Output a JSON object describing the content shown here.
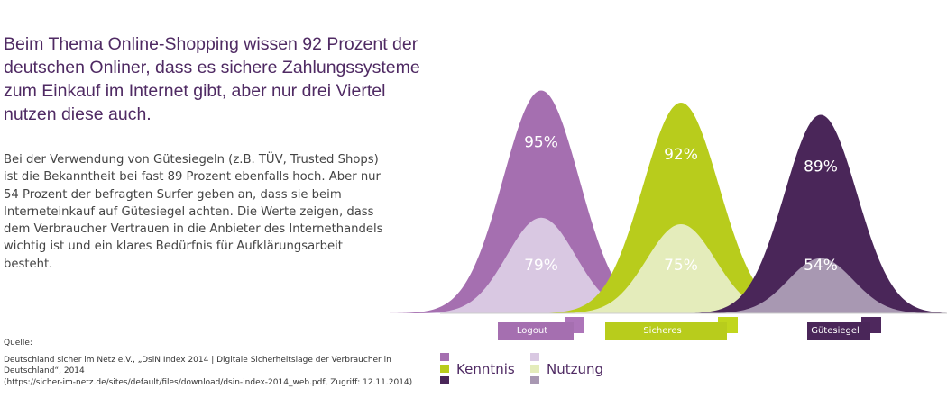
{
  "title": "Beim Thema Online-Shopping wissen 92 Prozent der deutschen Onliner, dass es sichere Zahlungssysteme zum Einkauf im Internet gibt, aber nur drei Viertel nutzen diese auch.",
  "body": "Bei der Verwendung von Gütesiegeln (z.B. TÜV, Trusted Shops) ist die Bekanntheit bei fast 89 Prozent ebenfalls hoch. Aber nur 54 Prozent der befragten Surfer geben an, dass sie beim Interneteinkauf auf Gütesiegel achten. Die Werte zeigen, dass dem Verbraucher Vertrauen in die Anbieter des Internethandels wichtig ist und ein klares Bedürfnis für Aufklärungsarbeit besteht.",
  "source": {
    "label": "Quelle:",
    "text": "Deutschland sicher im Netz e.V., „DsiN Index 2014 | Digitale Sicherheitslage der Verbraucher in Deutschland“, 2014",
    "url": "(https://sicher-im-netz.de/sites/default/files/download/dsin-index-2014_web.pdf, Zugriff: 12.11.2014)"
  },
  "chart_data": {
    "type": "area",
    "categories": [
      "Logout",
      "Sicheres Zahlungssystem",
      "Gütesiegel"
    ],
    "series": [
      {
        "name": "Kenntnis",
        "values": [
          95,
          92,
          89
        ],
        "labels": [
          "95%",
          "92%",
          "89%"
        ]
      },
      {
        "name": "Nutzung",
        "values": [
          79,
          75,
          54
        ],
        "labels": [
          "79%",
          "75%",
          "54%"
        ]
      }
    ],
    "colors": {
      "Kenntnis": [
        "#a56fb0",
        "#b8cc1c",
        "#4a2659"
      ],
      "Nutzung": [
        "#d9c8e2",
        "#e4ecbb",
        "#a898b2"
      ]
    },
    "ylim": [
      0,
      100
    ]
  },
  "legend": {
    "kenntnis": "Kenntnis",
    "nutzung": "Nutzung"
  }
}
